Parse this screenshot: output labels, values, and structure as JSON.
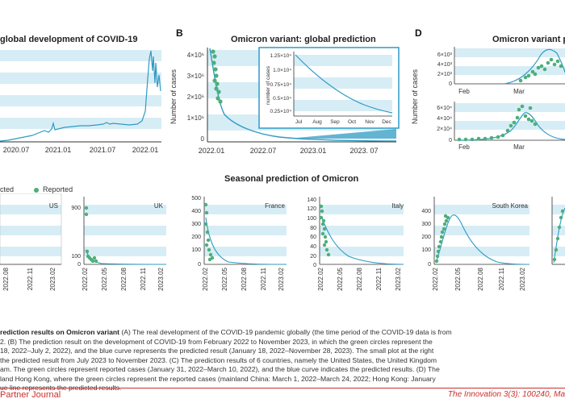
{
  "figure": {
    "panelA": {
      "title": "global development of COVID-19",
      "xticks": [
        "2020.07",
        "2021.01",
        "2021.07",
        "2022.01"
      ]
    },
    "panelB": {
      "label": "B",
      "title": "Omicron variant: global prediction",
      "ylabel": "Number of cases",
      "yticks": [
        "4×10⁶",
        "3×10⁶",
        "2×10⁶",
        "1×10⁶",
        "0"
      ],
      "xticks": [
        "2022.01",
        "2022.07",
        "2023.01",
        "2023. 07"
      ],
      "inset": {
        "ylabel": "number of cases",
        "yticks": [
          "1.25×10⁴",
          "1.0×10⁴",
          "0.75×10⁴",
          "0.5×10⁴",
          "0.25×10⁴"
        ],
        "xticks": [
          "Jul",
          "Aug",
          "Sep",
          "Oct",
          "Nov",
          "Dec"
        ]
      }
    },
    "panelD": {
      "label": "D",
      "title": "Omicron variant p",
      "ylabel": "Number of cases",
      "top_yticks": [
        "6×10³",
        "4×10³",
        "2×10³",
        "0"
      ],
      "top_xticks": [
        "Feb",
        "Mar"
      ],
      "bottom_yticks": [
        "6×10⁴",
        "4×10⁴",
        "2×10⁴",
        "0"
      ],
      "bottom_xticks": [
        "Feb",
        "Mar"
      ]
    },
    "panelC": {
      "title": "Seasonal prediction of Omicron",
      "legend": {
        "predicted": "cted",
        "reported": "Reported"
      },
      "xticks": [
        "2022.02",
        "2022.05",
        "2022.08",
        "2022.11",
        "2023.02"
      ],
      "subplots": [
        {
          "name": "US",
          "yticks": [],
          "xticks": [
            "2022.08",
            "2022.11",
            "2023.02"
          ]
        },
        {
          "name": "UK",
          "yticks": [
            "900",
            "100",
            "0"
          ]
        },
        {
          "name": "France",
          "yticks": [
            "500",
            "400",
            "300",
            "200",
            "100",
            "0"
          ]
        },
        {
          "name": "Italy",
          "yticks": [
            "140",
            "120",
            "100",
            "80",
            "60",
            "40",
            "20",
            "0"
          ]
        },
        {
          "name": "South Korea",
          "yticks": [
            "400",
            "300",
            "200",
            "100",
            "0"
          ]
        }
      ]
    }
  },
  "caption": {
    "lines": [
      {
        "bold": "rediction results on Omicron variant",
        "text": " (A) The real development of the COVID-19 pandemic globally (the time period of the COVID-19 data is from"
      },
      {
        "bold": "",
        "text": "2. (B) The prediction result on the development of COVID-19 from February 2022 to November 2023, in which the green circles represent the"
      },
      {
        "bold": "",
        "text": "18, 2022–July 2, 2022), and the blue curve represents the predicted result (January 18, 2022–November 28, 2023). The small plot at the right"
      },
      {
        "bold": "",
        "text": "the predicted result from July 2023 to November 2023. (C) The prediction results of 6 countries, namely the United States, the United Kingdom"
      },
      {
        "bold": "",
        "text": "am. The green circles represent reported cases (January 31, 2022–March 10, 2022), and the blue curve indicates the predicted results. (D) The"
      },
      {
        "bold": "",
        "text": "land Hong Kong, where the green circles represent the reported cases (mainland China: March 1, 2022–March 24, 2022; Hong Kong: January"
      },
      {
        "bold": "",
        "text": "ue line represents the predicted results."
      }
    ]
  },
  "footer": {
    "left": "Partner Journal",
    "right": "The Innovation 3(3): 100240, Ma"
  },
  "colors": {
    "curve": "#2f9bc4",
    "dots": "#4caf7a",
    "band": "#d7edf5",
    "footer": "#c9302c"
  }
}
